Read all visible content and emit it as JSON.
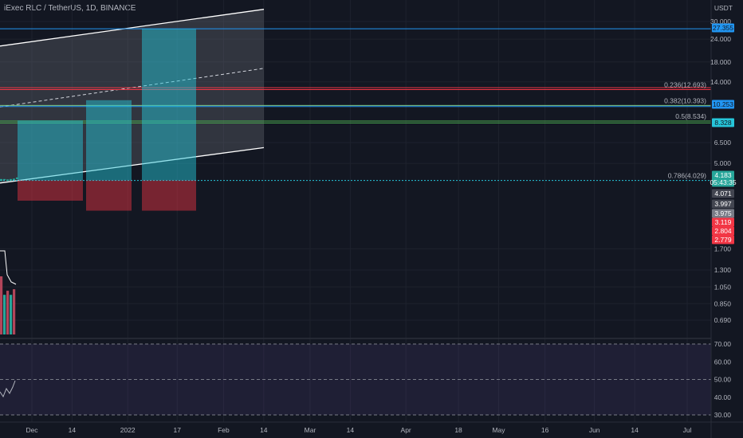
{
  "title": "iExec RLC / TetherUS, 1D, BINANCE",
  "chart_data": {
    "type": "candlestick",
    "symbol": "iExec RLC / TetherUS",
    "interval": "1D",
    "exchange": "BINANCE",
    "y_axis_unit": "USDT",
    "y_axis_scale": "log",
    "y_axis_ticks": [
      {
        "label": "30.000",
        "value": 30.0
      },
      {
        "label": "24.000",
        "value": 24.0
      },
      {
        "label": "18.000",
        "value": 18.0
      },
      {
        "label": "14.000",
        "value": 14.0
      },
      {
        "label": "6.500",
        "value": 6.5
      },
      {
        "label": "5.000",
        "value": 5.0
      },
      {
        "label": "1.700",
        "value": 1.7
      },
      {
        "label": "1.300",
        "value": 1.3
      },
      {
        "label": "1.050",
        "value": 1.05
      },
      {
        "label": "0.850",
        "value": 0.85
      },
      {
        "label": "0.690",
        "value": 0.69
      }
    ],
    "x_axis_ticks": [
      {
        "label": "Dec",
        "date": "2021-12-01"
      },
      {
        "label": "14",
        "date": "2021-12-14"
      },
      {
        "label": "2022",
        "date": "2022-01-01"
      },
      {
        "label": "17",
        "date": "2022-01-17"
      },
      {
        "label": "Feb",
        "date": "2022-02-01"
      },
      {
        "label": "14",
        "date": "2022-02-14"
      },
      {
        "label": "Mar",
        "date": "2022-03-01"
      },
      {
        "label": "14",
        "date": "2022-03-14"
      },
      {
        "label": "Apr",
        "date": "2022-04-01"
      },
      {
        "label": "18",
        "date": "2022-04-18"
      },
      {
        "label": "May",
        "date": "2022-05-01"
      },
      {
        "label": "16",
        "date": "2022-05-16"
      },
      {
        "label": "Jun",
        "date": "2022-06-01"
      },
      {
        "label": "14",
        "date": "2022-06-14"
      },
      {
        "label": "Jul",
        "date": "2022-07-01"
      }
    ],
    "price_tags": [
      {
        "label": "27.355",
        "value": 27.355,
        "color": "#2196f3",
        "text_color": "#131722"
      },
      {
        "label": "10.253",
        "value": 10.253,
        "color": "#2196f3",
        "text_color": "#131722"
      },
      {
        "label": "8.328",
        "value": 8.328,
        "color": "#26c6da",
        "text_color": "#131722"
      },
      {
        "label": "4.183",
        "sub": "05:43:35",
        "value": 4.183,
        "color": "#26a69a",
        "text_color": "#ffffff"
      },
      {
        "label": "4.071",
        "value": 4.071,
        "color": "#434651",
        "text_color": "#ffffff"
      },
      {
        "label": "3.997",
        "value": 3.997,
        "color": "#434651",
        "text_color": "#ffffff"
      },
      {
        "label": "3.975",
        "value": 3.975,
        "color": "#787b86",
        "text_color": "#ffffff"
      },
      {
        "label": "3.119",
        "value": 3.119,
        "color": "#f23645",
        "text_color": "#ffffff"
      },
      {
        "label": "2.804",
        "value": 2.804,
        "color": "#f23645",
        "text_color": "#ffffff"
      },
      {
        "label": "2.779",
        "value": 2.779,
        "color": "#f23645",
        "text_color": "#ffffff"
      }
    ],
    "horizontal_lines": [
      {
        "value": 27.355,
        "color": "#2196f3"
      },
      {
        "value": 13.0,
        "color": "#f23645"
      },
      {
        "value": 10.253,
        "color": "#2196f3"
      },
      {
        "value": 8.328,
        "color": "#4caf50"
      }
    ],
    "fibonacci": [
      {
        "label": "0.236(12.693)",
        "ratio": 0.236,
        "value": 12.693,
        "color": "#f23645"
      },
      {
        "label": "0.382(10.393)",
        "ratio": 0.382,
        "value": 10.393,
        "color": "#81c784"
      },
      {
        "label": "0.5(8.534)",
        "ratio": 0.5,
        "value": 8.534,
        "color": "#4caf50"
      },
      {
        "label": "0.786(4.029)",
        "ratio": 0.786,
        "value": 4.029,
        "color": "#26c6da"
      }
    ],
    "position_boxes": [
      {
        "target": 8.6,
        "entry": 4.029,
        "stop": 3.12
      },
      {
        "target": 11.1,
        "entry": 4.029,
        "stop": 2.75
      },
      {
        "target": 27.355,
        "entry": 4.029,
        "stop": 2.75
      }
    ],
    "channel": {
      "upper": {
        "start": 22.0,
        "end": 35.0
      },
      "middle": {
        "start": 10.2,
        "end": 16.6
      },
      "lower": {
        "start": 3.9,
        "end": 6.1
      }
    },
    "oscillator": {
      "type": "rsi",
      "y_axis_ticks": [
        {
          "label": "70.00",
          "value": 70
        },
        {
          "label": "60.00",
          "value": 60
        },
        {
          "label": "50.00",
          "value": 50
        },
        {
          "label": "40.00",
          "value": 40
        },
        {
          "label": "30.00",
          "value": 30
        }
      ],
      "levels": [
        70,
        50,
        30
      ],
      "band": [
        30,
        70
      ]
    }
  },
  "colors": {
    "background": "#131722",
    "text": "#b2b5be",
    "grid": "#1e222d",
    "rsi_band": "#7e57c2"
  }
}
